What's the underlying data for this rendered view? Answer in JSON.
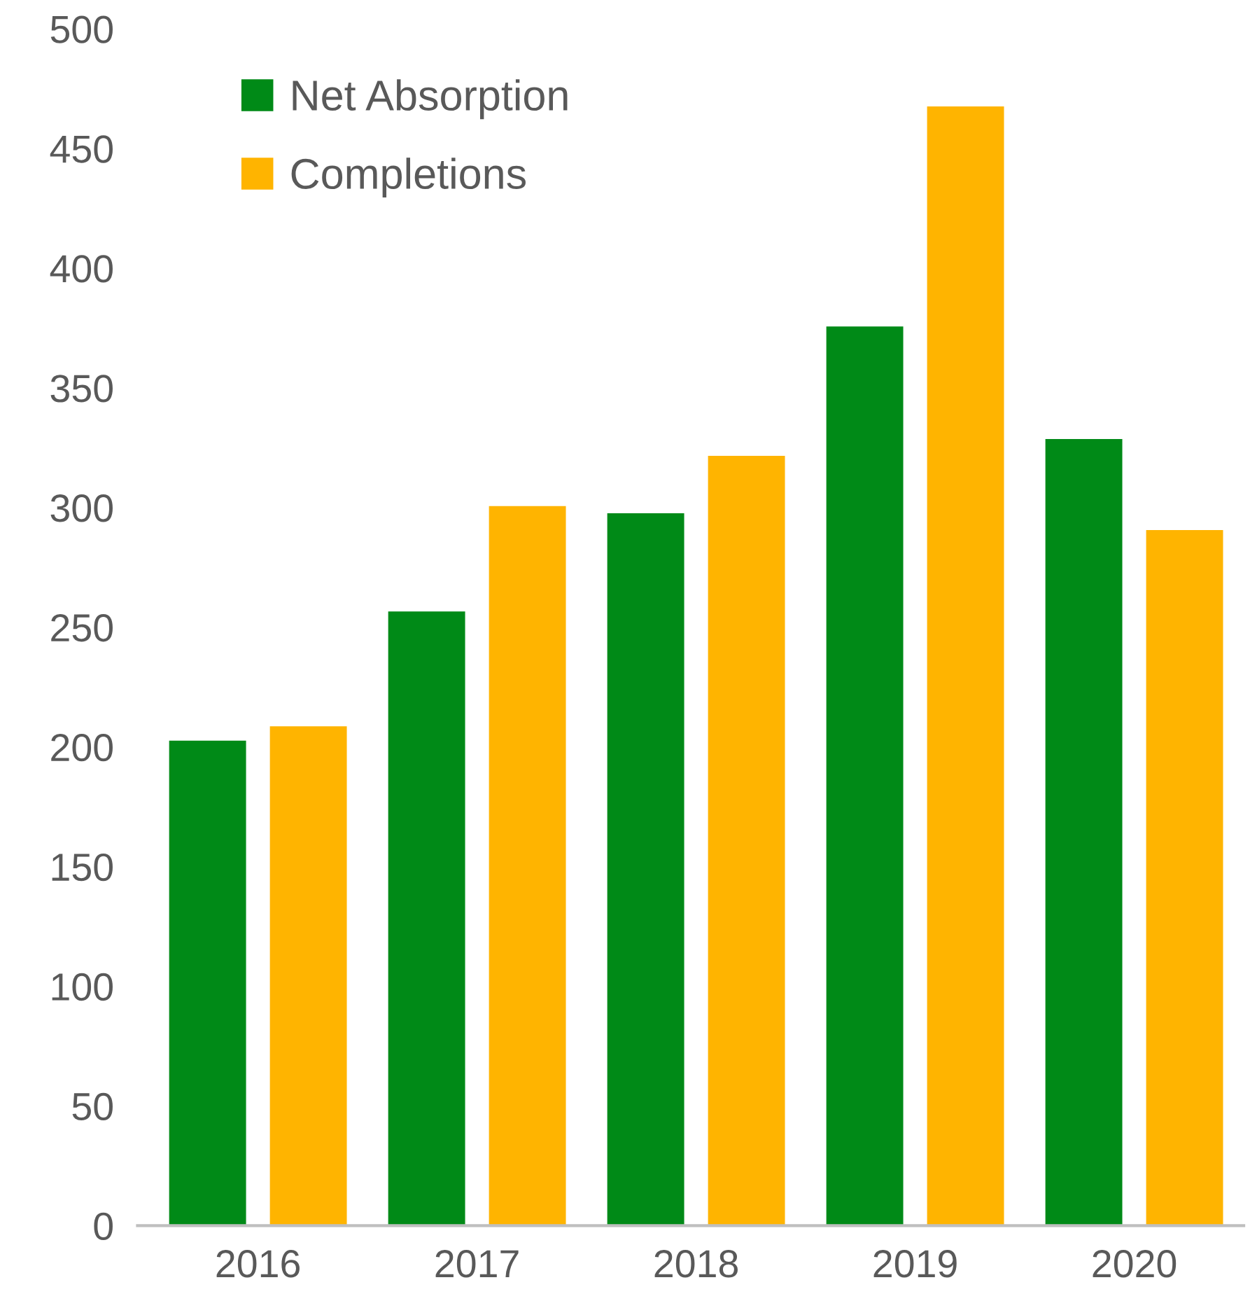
{
  "chart_data": {
    "type": "bar",
    "categories": [
      "2016",
      "2017",
      "2018",
      "2019",
      "2020"
    ],
    "series": [
      {
        "name": "Net Absorption",
        "color": "#008a17",
        "values": [
          203,
          257,
          298,
          376,
          329
        ]
      },
      {
        "name": "Completions",
        "color": "#ffb400",
        "values": [
          209,
          301,
          322,
          468,
          291
        ]
      }
    ],
    "ylim": [
      0,
      500
    ],
    "yticks": [
      0,
      50,
      100,
      150,
      200,
      250,
      300,
      350,
      400,
      450,
      500
    ],
    "grid": false,
    "legend": "top left"
  }
}
